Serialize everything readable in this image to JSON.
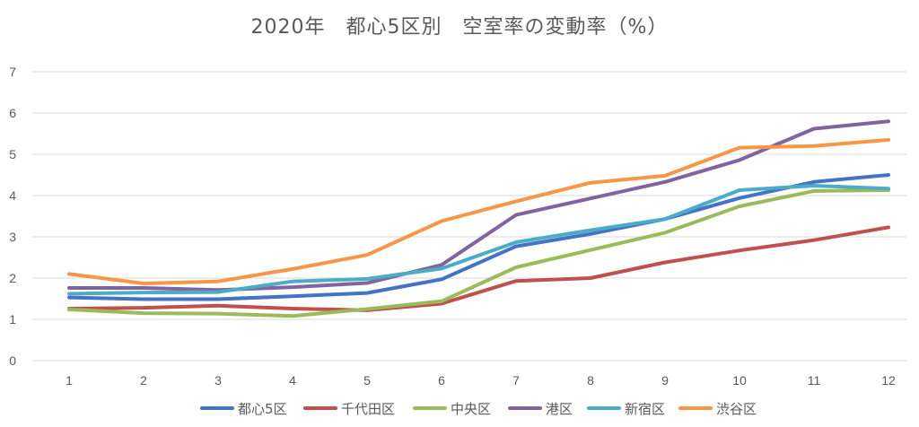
{
  "chart_data": {
    "type": "line",
    "title": "2020年　都心5区別　空室率の変動率（%）",
    "xlabel": "",
    "ylabel": "",
    "categories": [
      "1",
      "2",
      "3",
      "4",
      "5",
      "6",
      "7",
      "8",
      "9",
      "10",
      "11",
      "12"
    ],
    "ylim": [
      0,
      7
    ],
    "yticks": [
      "0",
      "1",
      "2",
      "3",
      "4",
      "5",
      "6",
      "7"
    ],
    "grid": true,
    "legend": "bottom",
    "series": [
      {
        "name": "都心5区",
        "color": "#4472C4",
        "values": [
          1.53,
          1.49,
          1.49,
          1.56,
          1.64,
          1.97,
          2.77,
          3.07,
          3.43,
          3.94,
          4.33,
          4.5
        ]
      },
      {
        "name": "千代田区",
        "color": "#C0504D",
        "values": [
          1.26,
          1.28,
          1.33,
          1.26,
          1.22,
          1.38,
          1.93,
          2.0,
          2.38,
          2.67,
          2.92,
          3.23
        ]
      },
      {
        "name": "中央区",
        "color": "#9BBB59",
        "values": [
          1.24,
          1.15,
          1.14,
          1.08,
          1.25,
          1.44,
          2.26,
          2.68,
          3.1,
          3.74,
          4.11,
          4.13
        ]
      },
      {
        "name": "港区",
        "color": "#8064A2",
        "values": [
          1.76,
          1.76,
          1.71,
          1.78,
          1.88,
          2.32,
          3.53,
          3.93,
          4.33,
          4.86,
          5.62,
          5.8
        ]
      },
      {
        "name": "新宿区",
        "color": "#4BACC6",
        "values": [
          1.62,
          1.65,
          1.66,
          1.92,
          1.98,
          2.23,
          2.87,
          3.16,
          3.43,
          4.13,
          4.24,
          4.17
        ]
      },
      {
        "name": "渋谷区",
        "color": "#F79646",
        "values": [
          2.1,
          1.87,
          1.92,
          2.22,
          2.56,
          3.38,
          3.86,
          4.31,
          4.48,
          5.16,
          5.2,
          5.35
        ]
      }
    ]
  }
}
